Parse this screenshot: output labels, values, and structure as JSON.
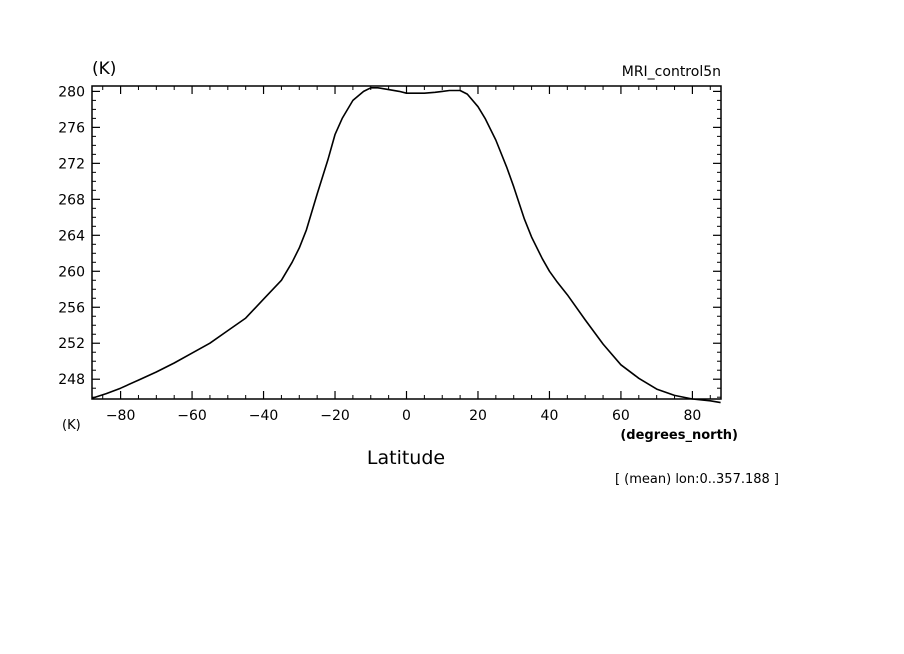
{
  "chart_data": {
    "type": "line",
    "title": "MRI_control5n",
    "ylabel_top": "(K)",
    "ylabel_bottom": "(K)",
    "xlabel": "Latitude",
    "xunits": "(degrees_north)",
    "note": "[ (mean) lon:0..357.188 ]",
    "xlim": [
      -88,
      88
    ],
    "ylim": [
      245.8,
      280.6
    ],
    "xticks": [
      -80,
      -60,
      -40,
      -20,
      0,
      20,
      40,
      60,
      80
    ],
    "yticks": [
      248,
      252,
      256,
      260,
      264,
      268,
      272,
      276,
      280
    ],
    "grid": false,
    "series": [
      {
        "x": [
          -87.9,
          -84,
          -80,
          -75,
          -70,
          -65,
          -60,
          -55,
          -50,
          -45,
          -40,
          -35,
          -32,
          -30,
          -28,
          -25,
          -22,
          -20,
          -18,
          -15,
          -12,
          -10,
          -8,
          -5,
          -2,
          0,
          3,
          5,
          8,
          10,
          12,
          15,
          17,
          20,
          22,
          25,
          28,
          30,
          33,
          35,
          38,
          40,
          42,
          45,
          50,
          55,
          60,
          65,
          70,
          75,
          80,
          85,
          87.9
        ],
        "y": [
          245.9,
          246.4,
          247.0,
          247.9,
          248.8,
          249.8,
          250.9,
          252.0,
          253.4,
          254.8,
          256.9,
          259.0,
          261.0,
          262.6,
          264.6,
          268.6,
          272.4,
          275.2,
          277.0,
          279.0,
          280.0,
          280.4,
          280.4,
          280.2,
          280.0,
          279.8,
          279.8,
          279.8,
          279.9,
          280.0,
          280.1,
          280.1,
          279.7,
          278.3,
          277.0,
          274.6,
          271.6,
          269.4,
          265.8,
          263.8,
          261.4,
          260.0,
          258.9,
          257.4,
          254.6,
          251.9,
          249.6,
          248.1,
          246.9,
          246.2,
          245.8,
          245.6,
          245.4
        ]
      }
    ]
  }
}
